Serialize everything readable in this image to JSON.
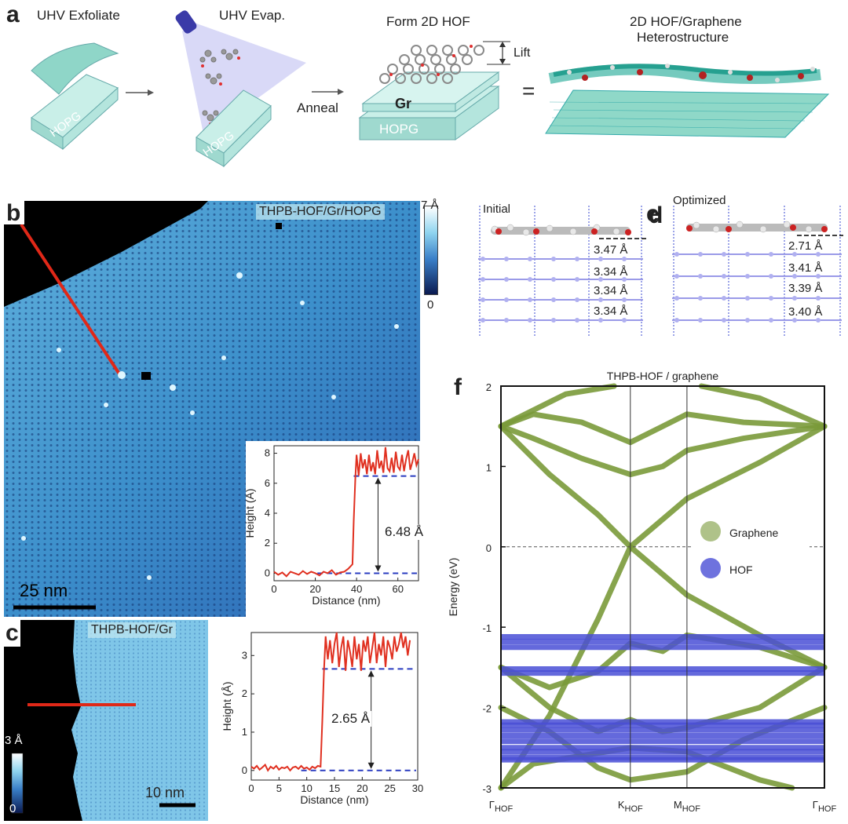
{
  "panel_a": {
    "label": "a",
    "step1_title": "UHV Exfoliate",
    "step2_title": "UHV Evap.",
    "step3_title": "Form 2D HOF",
    "step4_title_line1": "2D HOF/Graphene",
    "step4_title_line2": "Heterostructure",
    "hopg_label": "HOPG",
    "gr_label": "Gr",
    "anneal_label": "Anneal",
    "lift_label": "Lift",
    "equals": "="
  },
  "panel_b": {
    "label": "b",
    "overlay_text": "THPB-HOF/Gr/HOPG",
    "scale_bar": "25 nm",
    "colorbar_max": "7 Å",
    "colorbar_min": "0",
    "inset_step_label": "6.48 Å"
  },
  "panel_c": {
    "label": "c",
    "overlay_text": "THPB-HOF/Gr",
    "scale_bar": "10 nm",
    "colorbar_max": "3 Å",
    "colorbar_min": "0",
    "step_label": "2.65 Å"
  },
  "panel_d": {
    "label": "d",
    "title": "Initial",
    "spacings": [
      "3.47 Å",
      "3.34 Å",
      "3.34 Å",
      "3.34 Å"
    ]
  },
  "panel_e": {
    "label": "e",
    "title": "Optimized",
    "spacings": [
      "2.71 Å",
      "3.41 Å",
      "3.39 Å",
      "3.40 Å"
    ]
  },
  "panel_f": {
    "label": "f"
  },
  "colors": {
    "graphene": "#7a9a3a",
    "hof": "#4a4fd6",
    "profile": "#e03020",
    "guide": "#2a3cc0",
    "substrate": "#9fe0d8"
  },
  "chart_data": [
    {
      "id": "b-inset",
      "type": "line",
      "xlabel": "Distance (nm)",
      "ylabel": "Height (Å)",
      "xlim": [
        0,
        70
      ],
      "ylim": [
        -0.5,
        8.5
      ],
      "xticks": [
        "0",
        "20",
        "40",
        "60"
      ],
      "yticks": [
        "0",
        "2",
        "4",
        "6",
        "8"
      ],
      "series": [
        {
          "x": [
            0,
            2,
            4,
            6,
            8,
            10,
            12,
            14,
            16,
            18,
            20,
            22,
            24,
            26,
            28,
            30,
            32,
            34,
            36,
            38,
            38.6,
            39.4,
            40,
            41,
            42,
            43,
            44,
            45,
            46,
            47,
            48,
            49,
            50,
            51,
            52,
            53,
            54,
            55,
            56,
            57,
            58,
            59,
            60,
            61,
            62,
            63,
            64,
            65,
            66,
            67,
            68,
            69,
            70
          ],
          "y": [
            0.1,
            -0.1,
            0.05,
            -0.2,
            0.1,
            0,
            -0.1,
            0.15,
            -0.05,
            0.1,
            0,
            -0.15,
            0.1,
            0,
            0.2,
            -0.1,
            0.05,
            0.1,
            0.3,
            0.6,
            3.5,
            6.4,
            7.9,
            6.5,
            8.0,
            7.0,
            7.6,
            6.6,
            7.9,
            6.8,
            7.4,
            6.6,
            8.2,
            7.0,
            7.5,
            6.7,
            8.4,
            7.0,
            6.8,
            7.7,
            6.7,
            8.1,
            7.1,
            6.9,
            7.9,
            6.8,
            7.6,
            8.2,
            6.9,
            7.4,
            8.0,
            7.2,
            7.6
          ]
        }
      ],
      "levels": [
        0,
        6.48
      ]
    },
    {
      "id": "c-profile",
      "type": "line",
      "xlabel": "Distance (nm)",
      "ylabel": "Height (Å)",
      "xlim": [
        0,
        30
      ],
      "ylim": [
        -0.25,
        3.6
      ],
      "xticks": [
        "0",
        "5",
        "10",
        "15",
        "20",
        "25",
        "30"
      ],
      "yticks": [
        "0",
        "1",
        "2",
        "3"
      ],
      "series": [
        {
          "x": [
            0,
            0.5,
            1,
            1.5,
            2,
            2.5,
            3,
            3.5,
            4,
            4.5,
            5,
            5.5,
            6,
            6.5,
            7,
            7.5,
            8,
            8.5,
            9,
            9.5,
            10,
            10.5,
            11,
            11.5,
            12,
            12.5,
            12.8,
            13.1,
            13.4,
            13.8,
            14.2,
            14.6,
            15,
            15.4,
            15.8,
            16.2,
            16.6,
            17,
            17.4,
            17.8,
            18.2,
            18.6,
            19,
            19.4,
            19.8,
            20.2,
            20.6,
            21,
            21.4,
            21.8,
            22.2,
            22.6,
            23,
            23.4,
            23.8,
            24.2,
            24.6,
            25,
            25.4,
            25.8,
            26.2,
            26.6,
            27,
            27.4,
            27.8,
            28.2,
            28.6
          ],
          "y": [
            0.1,
            0.05,
            0.12,
            0.02,
            0.08,
            0.15,
            0.0,
            0.1,
            0.05,
            0.12,
            0.02,
            0.08,
            0.06,
            0.1,
            0.0,
            0.08,
            0.1,
            0.04,
            0.12,
            0.05,
            0.08,
            0.02,
            0.1,
            0.06,
            0.12,
            0.1,
            1.3,
            2.6,
            3.5,
            2.9,
            3.4,
            2.8,
            3.3,
            3.6,
            2.7,
            3.2,
            3.5,
            2.6,
            3.4,
            3.1,
            2.7,
            3.5,
            2.9,
            3.3,
            2.6,
            3.4,
            3.1,
            3.5,
            2.8,
            3.2,
            3.6,
            2.8,
            3.3,
            3.0,
            3.5,
            2.7,
            3.4,
            3.2,
            2.9,
            3.5,
            3.1,
            3.3,
            3.6,
            3.2,
            3.5,
            3.0,
            3.4
          ]
        }
      ],
      "levels": [
        0,
        2.65
      ]
    },
    {
      "id": "f-bands",
      "type": "line",
      "title": "THPB-HOF / graphene",
      "ylabel": "Energy (eV)",
      "ylim": [
        -3,
        2
      ],
      "yticks": [
        "2",
        "1",
        "0",
        "-1",
        "-2",
        "-3"
      ],
      "kpoints": [
        "Γ",
        "K",
        "M",
        "Γ"
      ],
      "kpoint_subscript": "HOF",
      "kpoint_positions": [
        0,
        0.4,
        0.575,
        1.0
      ],
      "legend": [
        "Graphene",
        "HOF"
      ],
      "fermi_level": 0,
      "hof_band_energies": [
        -1.12,
        -1.18,
        -1.25,
        -1.52,
        -1.57,
        -2.18,
        -2.22,
        -2.28,
        -2.35,
        -2.42,
        -2.5,
        -2.55,
        -2.62,
        -2.65
      ],
      "graphene_bands": [
        [
          [
            0,
            -3.0
          ],
          [
            0.15,
            -2.1
          ],
          [
            0.3,
            -0.9
          ],
          [
            0.4,
            0.0
          ],
          [
            0.575,
            0.6
          ],
          [
            0.8,
            1.05
          ],
          [
            1.0,
            1.5
          ]
        ],
        [
          [
            0,
            1.5
          ],
          [
            0.15,
            0.9
          ],
          [
            0.3,
            0.4
          ],
          [
            0.4,
            0.0
          ],
          [
            0.575,
            -0.6
          ],
          [
            0.8,
            -1.1
          ],
          [
            1.0,
            -1.5
          ]
        ],
        [
          [
            0,
            1.5
          ],
          [
            0.1,
            1.65
          ],
          [
            0.25,
            1.55
          ],
          [
            0.4,
            1.3
          ],
          [
            0.5,
            1.5
          ],
          [
            0.575,
            1.65
          ],
          [
            0.75,
            1.55
          ],
          [
            1.0,
            1.5
          ]
        ],
        [
          [
            0,
            1.5
          ],
          [
            0.1,
            1.35
          ],
          [
            0.25,
            1.1
          ],
          [
            0.4,
            0.9
          ],
          [
            0.5,
            1.0
          ],
          [
            0.575,
            1.2
          ],
          [
            0.75,
            1.35
          ],
          [
            1.0,
            1.5
          ]
        ],
        [
          [
            0,
            1.5
          ],
          [
            0.2,
            1.9
          ],
          [
            0.35,
            2.0
          ]
        ],
        [
          [
            0.62,
            2.0
          ],
          [
            0.8,
            1.85
          ],
          [
            1.0,
            1.5
          ]
        ],
        [
          [
            0,
            -1.5
          ],
          [
            0.15,
            -1.75
          ],
          [
            0.3,
            -1.55
          ],
          [
            0.4,
            -1.2
          ],
          [
            0.5,
            -1.3
          ],
          [
            0.575,
            -1.1
          ],
          [
            0.8,
            -1.25
          ],
          [
            1.0,
            -1.5
          ]
        ],
        [
          [
            0,
            -1.5
          ],
          [
            0.15,
            -2.0
          ],
          [
            0.3,
            -2.3
          ],
          [
            0.4,
            -2.15
          ],
          [
            0.5,
            -2.3
          ],
          [
            0.575,
            -2.25
          ],
          [
            0.8,
            -2.0
          ],
          [
            1.0,
            -1.5
          ]
        ],
        [
          [
            0,
            -3.0
          ],
          [
            0.1,
            -2.7
          ],
          [
            0.25,
            -2.6
          ],
          [
            0.4,
            -2.5
          ],
          [
            0.575,
            -2.55
          ],
          [
            0.8,
            -2.9
          ],
          [
            0.9,
            -3.0
          ]
        ],
        [
          [
            0,
            -2.0
          ],
          [
            0.15,
            -2.3
          ],
          [
            0.3,
            -2.75
          ],
          [
            0.4,
            -2.9
          ],
          [
            0.575,
            -2.8
          ],
          [
            0.75,
            -2.4
          ],
          [
            1.0,
            -2.0
          ]
        ]
      ]
    }
  ]
}
